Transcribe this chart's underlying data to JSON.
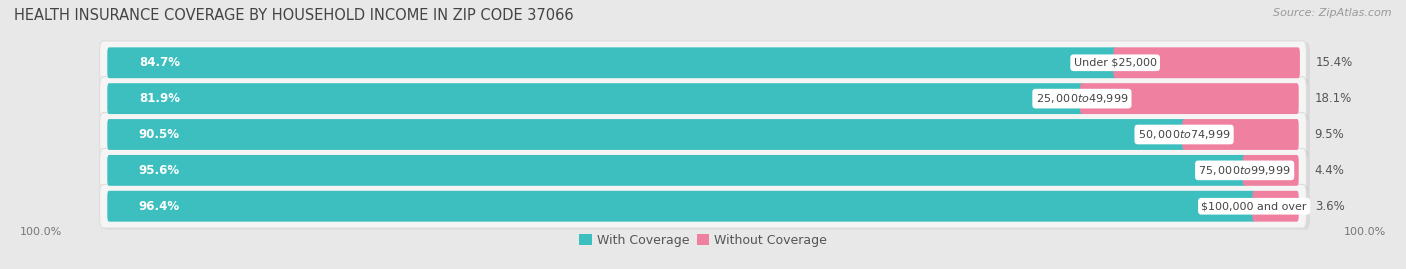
{
  "title": "HEALTH INSURANCE COVERAGE BY HOUSEHOLD INCOME IN ZIP CODE 37066",
  "source": "Source: ZipAtlas.com",
  "categories": [
    "Under $25,000",
    "$25,000 to $49,999",
    "$50,000 to $74,999",
    "$75,000 to $99,999",
    "$100,000 and over"
  ],
  "with_coverage": [
    84.7,
    81.9,
    90.5,
    95.6,
    96.4
  ],
  "without_coverage": [
    15.4,
    18.1,
    9.5,
    4.4,
    3.6
  ],
  "color_with": "#3dbfbf",
  "color_without": "#f080a0",
  "bg_color": "#e8e8e8",
  "bar_bg_color": "#f5f5f5",
  "title_fontsize": 10.5,
  "label_fontsize": 8.5,
  "legend_fontsize": 9,
  "bar_height": 0.62,
  "bottom_labels": [
    "100.0%",
    "100.0%"
  ]
}
